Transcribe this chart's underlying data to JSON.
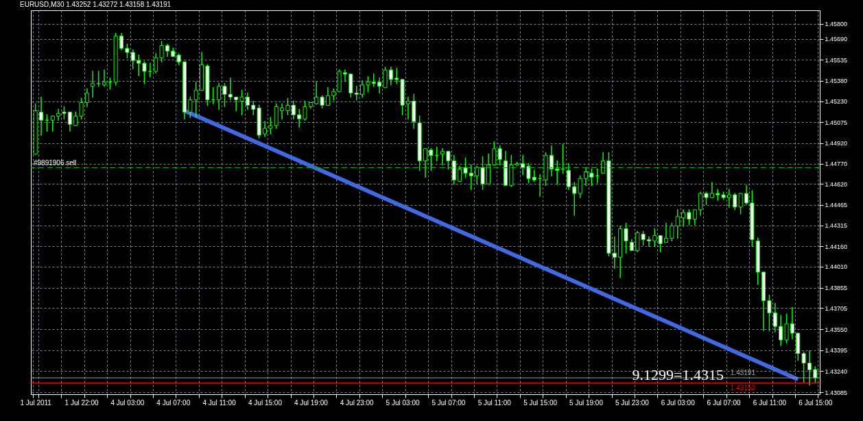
{
  "chart_data": {
    "type": "candlestick",
    "title": "EURUSD,M30  1.43252 1.43272 1.43158 1.43191",
    "categories": [
      "1 Jul 2011",
      null,
      null,
      null,
      null,
      null,
      null,
      null,
      "1 Jul 22:00",
      null,
      null,
      null,
      null,
      null,
      null,
      null,
      "4 Jul 03:00",
      null,
      null,
      null,
      null,
      null,
      null,
      null,
      "4 Jul 07:00",
      null,
      null,
      null,
      null,
      null,
      null,
      null,
      "4 Jul 11:00",
      null,
      null,
      null,
      null,
      null,
      null,
      null,
      "4 Jul 15:00",
      null,
      null,
      null,
      null,
      null,
      null,
      null,
      "4 Jul 19:00",
      null,
      null,
      null,
      null,
      null,
      null,
      null,
      "4 Jul 23:00",
      null,
      null,
      null,
      null,
      null,
      null,
      null,
      "5 Jul 03:00",
      null,
      null,
      null,
      null,
      null,
      null,
      null,
      "5 Jul 07:00",
      null,
      null,
      null,
      null,
      null,
      null,
      null,
      "5 Jul 11:00",
      null,
      null,
      null,
      null,
      null,
      null,
      null,
      "5 Jul 15:00",
      null,
      null,
      null,
      null,
      null,
      null,
      null,
      "5 Jul 19:00",
      null,
      null,
      null,
      null,
      null,
      null,
      null,
      "5 Jul 23:00",
      null,
      null,
      null,
      null,
      null,
      null,
      null,
      "6 Jul 03:00",
      null,
      null,
      null,
      null,
      null,
      null,
      null,
      "6 Jul 07:00",
      null,
      null,
      null,
      null,
      null,
      null,
      null,
      "6 Jul 11:00",
      null,
      null,
      null,
      null,
      null,
      null,
      null,
      "6 Jul 15:00"
    ],
    "ohlc": [
      [
        1.4484,
        1.4521,
        1.4484,
        1.4516
      ],
      [
        1.4515,
        1.4526,
        1.4498,
        1.4509
      ],
      [
        1.4509,
        1.4513,
        1.4501,
        1.4509
      ],
      [
        1.4509,
        1.4512,
        1.4501,
        1.4512
      ],
      [
        1.4512,
        1.4517,
        1.4509,
        1.4514
      ],
      [
        1.4515,
        1.4519,
        1.451,
        1.4514
      ],
      [
        1.4515,
        1.4515,
        1.4501,
        1.4506
      ],
      [
        1.4505,
        1.4515,
        1.4505,
        1.4512
      ],
      [
        1.4512,
        1.4525,
        1.451,
        1.4522
      ],
      [
        1.4522,
        1.4532,
        1.4519,
        1.4529
      ],
      [
        1.4534,
        1.4545,
        1.4526,
        1.4536
      ],
      [
        1.4536,
        1.4545,
        1.4534,
        1.4536
      ],
      [
        1.4535,
        1.4546,
        1.4534,
        1.4537
      ],
      [
        1.4537,
        1.454,
        1.4532,
        1.4537
      ],
      [
        1.4537,
        1.4573,
        1.4535,
        1.4571
      ],
      [
        1.4571,
        1.4573,
        1.4561,
        1.4562
      ],
      [
        1.4562,
        1.4565,
        1.4555,
        1.4559
      ],
      [
        1.4559,
        1.4561,
        1.4547,
        1.4553
      ],
      [
        1.4553,
        1.4557,
        1.4542,
        1.4551
      ],
      [
        1.4551,
        1.4552,
        1.4536,
        1.4545
      ],
      [
        1.4545,
        1.4551,
        1.4541,
        1.4545
      ],
      [
        1.4545,
        1.4558,
        1.4544,
        1.4555
      ],
      [
        1.4555,
        1.4567,
        1.4552,
        1.4564
      ],
      [
        1.4564,
        1.4565,
        1.4556,
        1.456
      ],
      [
        1.456,
        1.4562,
        1.4556,
        1.4556
      ],
      [
        1.4557,
        1.4558,
        1.455,
        1.4552
      ],
      [
        1.4552,
        1.4552,
        1.451,
        1.4515
      ],
      [
        1.4515,
        1.4526,
        1.4511,
        1.4524
      ],
      [
        1.4524,
        1.4537,
        1.4511,
        1.4531
      ],
      [
        1.4531,
        1.4559,
        1.4531,
        1.455
      ],
      [
        1.4549,
        1.455,
        1.452,
        1.4524
      ],
      [
        1.4524,
        1.4533,
        1.4521,
        1.4524
      ],
      [
        1.4524,
        1.4536,
        1.4517,
        1.4534
      ],
      [
        1.4534,
        1.4536,
        1.4519,
        1.4528
      ],
      [
        1.4528,
        1.454,
        1.4524,
        1.4526
      ],
      [
        1.4526,
        1.4526,
        1.4516,
        1.4524
      ],
      [
        1.4523,
        1.4531,
        1.4513,
        1.4526
      ],
      [
        1.4526,
        1.4529,
        1.4517,
        1.452
      ],
      [
        1.452,
        1.4523,
        1.4513,
        1.4517
      ],
      [
        1.4518,
        1.452,
        1.4496,
        1.4498
      ],
      [
        1.4499,
        1.4508,
        1.4497,
        1.4503
      ],
      [
        1.4503,
        1.4511,
        1.4499,
        1.4505
      ],
      [
        1.4505,
        1.4521,
        1.4503,
        1.4519
      ],
      [
        1.4516,
        1.4521,
        1.451,
        1.4518
      ],
      [
        1.4516,
        1.4525,
        1.4513,
        1.452
      ],
      [
        1.452,
        1.4523,
        1.451,
        1.4513
      ],
      [
        1.4513,
        1.4517,
        1.4504,
        1.451
      ],
      [
        1.451,
        1.4523,
        1.4509,
        1.4519
      ],
      [
        1.4519,
        1.4522,
        1.4518,
        1.4522
      ],
      [
        1.4521,
        1.4537,
        1.4521,
        1.4526
      ],
      [
        1.4526,
        1.4527,
        1.4518,
        1.452
      ],
      [
        1.452,
        1.4533,
        1.452,
        1.4527
      ],
      [
        1.4527,
        1.4532,
        1.4524,
        1.453
      ],
      [
        1.453,
        1.4546,
        1.453,
        1.4545
      ],
      [
        1.4544,
        1.4546,
        1.4538,
        1.4543
      ],
      [
        1.4543,
        1.4543,
        1.4526,
        1.4529
      ],
      [
        1.4529,
        1.4534,
        1.4524,
        1.4528
      ],
      [
        1.4528,
        1.4538,
        1.4526,
        1.4535
      ],
      [
        1.4535,
        1.4541,
        1.453,
        1.4537
      ],
      [
        1.4537,
        1.4543,
        1.4534,
        1.4536
      ],
      [
        1.4537,
        1.454,
        1.4529,
        1.4534
      ],
      [
        1.4533,
        1.4548,
        1.4533,
        1.4546
      ],
      [
        1.4546,
        1.4548,
        1.4535,
        1.4539
      ],
      [
        1.454,
        1.4547,
        1.4536,
        1.4539
      ],
      [
        1.4539,
        1.4539,
        1.4513,
        1.452
      ],
      [
        1.4521,
        1.4526,
        1.451,
        1.4523
      ],
      [
        1.4523,
        1.4528,
        1.4503,
        1.4508
      ],
      [
        1.4507,
        1.4512,
        1.4472,
        1.4479
      ],
      [
        1.4479,
        1.4488,
        1.4467,
        1.4488
      ],
      [
        1.4487,
        1.4488,
        1.4472,
        1.4483
      ],
      [
        1.4483,
        1.4489,
        1.4479,
        1.4483
      ],
      [
        1.4484,
        1.4488,
        1.4476,
        1.4486
      ],
      [
        1.4486,
        1.4486,
        1.4473,
        1.4479
      ],
      [
        1.4479,
        1.4483,
        1.4462,
        1.4465
      ],
      [
        1.4464,
        1.4475,
        1.4464,
        1.4473
      ],
      [
        1.4474,
        1.4481,
        1.4467,
        1.447
      ],
      [
        1.447,
        1.4476,
        1.4458,
        1.4468
      ],
      [
        1.4468,
        1.4475,
        1.4462,
        1.4474
      ],
      [
        1.4474,
        1.4482,
        1.4458,
        1.4462
      ],
      [
        1.4462,
        1.4484,
        1.4462,
        1.4476
      ],
      [
        1.4476,
        1.4493,
        1.4476,
        1.4488
      ],
      [
        1.4488,
        1.449,
        1.4476,
        1.448
      ],
      [
        1.4479,
        1.4486,
        1.4461,
        1.4461
      ],
      [
        1.4461,
        1.4483,
        1.446,
        1.4476
      ],
      [
        1.4476,
        1.4478,
        1.4476,
        1.4477
      ],
      [
        1.4477,
        1.4483,
        1.4469,
        1.4474
      ],
      [
        1.4475,
        1.4477,
        1.4463,
        1.4466
      ],
      [
        1.4467,
        1.4472,
        1.4464,
        1.4465
      ],
      [
        1.4466,
        1.4469,
        1.4453,
        1.4466
      ],
      [
        1.4465,
        1.4485,
        1.4461,
        1.4483
      ],
      [
        1.4483,
        1.449,
        1.4468,
        1.4473
      ],
      [
        1.4473,
        1.4479,
        1.4462,
        1.4472
      ],
      [
        1.4473,
        1.4491,
        1.447,
        1.4473
      ],
      [
        1.4472,
        1.4477,
        1.4458,
        1.446
      ],
      [
        1.446,
        1.4463,
        1.4439,
        1.4455
      ],
      [
        1.4455,
        1.4468,
        1.4452,
        1.4466
      ],
      [
        1.4466,
        1.4474,
        1.4461,
        1.4471
      ],
      [
        1.447,
        1.4473,
        1.4461,
        1.4467
      ],
      [
        1.4468,
        1.4473,
        1.4463,
        1.4468
      ],
      [
        1.447,
        1.4485,
        1.447,
        1.4479
      ],
      [
        1.4479,
        1.4485,
        1.4409,
        1.4411
      ],
      [
        1.4411,
        1.4423,
        1.44,
        1.4408
      ],
      [
        1.4408,
        1.4431,
        1.4393,
        1.4429
      ],
      [
        1.4429,
        1.4433,
        1.4411,
        1.442
      ],
      [
        1.4419,
        1.4421,
        1.4413,
        1.4413
      ],
      [
        1.4413,
        1.4427,
        1.4412,
        1.4426
      ],
      [
        1.4425,
        1.4427,
        1.4417,
        1.4421
      ],
      [
        1.4421,
        1.4423,
        1.4416,
        1.442
      ],
      [
        1.442,
        1.4429,
        1.4416,
        1.4424
      ],
      [
        1.4424,
        1.4424,
        1.4412,
        1.4418
      ],
      [
        1.4419,
        1.4433,
        1.4419,
        1.4422
      ],
      [
        1.4422,
        1.4433,
        1.442,
        1.4431
      ],
      [
        1.4431,
        1.4443,
        1.4422,
        1.4438
      ],
      [
        1.4437,
        1.4443,
        1.4431,
        1.4441
      ],
      [
        1.4441,
        1.4443,
        1.4432,
        1.4436
      ],
      [
        1.4436,
        1.4443,
        1.4432,
        1.4443
      ],
      [
        1.4443,
        1.4456,
        1.4439,
        1.4455
      ],
      [
        1.4455,
        1.4456,
        1.4447,
        1.4452
      ],
      [
        1.4452,
        1.4463,
        1.4452,
        1.4455
      ],
      [
        1.4455,
        1.4458,
        1.445,
        1.4454
      ],
      [
        1.4454,
        1.4456,
        1.4451,
        1.4452
      ],
      [
        1.4452,
        1.4458,
        1.4445,
        1.4454
      ],
      [
        1.4454,
        1.4455,
        1.4443,
        1.4445
      ],
      [
        1.4445,
        1.4455,
        1.444,
        1.4455
      ],
      [
        1.4455,
        1.4461,
        1.4447,
        1.4448
      ],
      [
        1.4448,
        1.4457,
        1.4416,
        1.4421
      ],
      [
        1.442,
        1.4422,
        1.4388,
        1.4397
      ],
      [
        1.4397,
        1.4397,
        1.4354,
        1.4376
      ],
      [
        1.4376,
        1.438,
        1.4354,
        1.4367
      ],
      [
        1.4367,
        1.4374,
        1.4353,
        1.4357
      ],
      [
        1.4357,
        1.4365,
        1.4343,
        1.4347
      ],
      [
        1.4347,
        1.4366,
        1.4345,
        1.4359
      ],
      [
        1.4359,
        1.4371,
        1.4348,
        1.4352
      ],
      [
        1.4352,
        1.4352,
        1.4332,
        1.4337
      ],
      [
        1.4337,
        1.4338,
        1.4316,
        1.433
      ],
      [
        1.433,
        1.4339,
        1.4314,
        1.4325
      ],
      [
        1.43252,
        1.43272,
        1.43158,
        1.43191
      ]
    ],
    "series": [
      {
        "type": "line",
        "color": "#4169e1",
        "values": [
          null,
          null,
          null,
          null,
          null,
          null,
          null,
          null,
          null,
          null,
          null,
          null,
          null,
          null,
          null,
          null,
          null,
          null,
          null,
          null,
          null,
          null,
          null,
          null,
          null,
          null,
          1.4516,
          null,
          null,
          null,
          null,
          null,
          null,
          null,
          null,
          null,
          null,
          null,
          null,
          null,
          null,
          null,
          null,
          null,
          null,
          null,
          null,
          null,
          null,
          null,
          null,
          null,
          null,
          null,
          null,
          null,
          null,
          null,
          null,
          null,
          null,
          null,
          null,
          null,
          null,
          null,
          null,
          null,
          null,
          null,
          null,
          null,
          null,
          null,
          null,
          null,
          null,
          null,
          null,
          null,
          null,
          null,
          null,
          null,
          null,
          null,
          null,
          null,
          null,
          null,
          null,
          null,
          null,
          null,
          null,
          null,
          null,
          null,
          null,
          null,
          null,
          null,
          null,
          null,
          null,
          null,
          null,
          null,
          null,
          null,
          null,
          null,
          null,
          null,
          null,
          null,
          null,
          null,
          null,
          null,
          null,
          null,
          null,
          null,
          null,
          null,
          null,
          null,
          null,
          null,
          null,
          null,
          null,
          1.4318,
          null,
          null,
          null
        ]
      }
    ],
    "ylim": [
      1.4307,
      1.459
    ],
    "yticks": [
      {
        "value": 1.458,
        "label": "1.45800"
      },
      {
        "value": 1.4569,
        "label": "1.45690"
      },
      {
        "value": 1.45535,
        "label": "1.45535"
      },
      {
        "value": 1.4538,
        "label": "1.45380"
      },
      {
        "value": 1.4523,
        "label": "1.45230"
      },
      {
        "value": 1.45075,
        "label": "1.45075"
      },
      {
        "value": 1.4492,
        "label": "1.44920"
      },
      {
        "value": 1.4477,
        "label": "1.44770"
      },
      {
        "value": 1.4462,
        "label": "1.44620"
      },
      {
        "value": 1.44465,
        "label": "1.44465"
      },
      {
        "value": 1.44315,
        "label": "1.44315"
      },
      {
        "value": 1.4416,
        "label": "1.44160"
      },
      {
        "value": 1.4401,
        "label": "1.44010"
      },
      {
        "value": 1.43855,
        "label": "1.43855"
      },
      {
        "value": 1.43705,
        "label": "1.43705"
      },
      {
        "value": 1.4355,
        "label": "1.43550"
      },
      {
        "value": 1.43395,
        "label": "1.43395"
      },
      {
        "value": 1.4324,
        "label": "1.43240"
      },
      {
        "value": 1.43085,
        "label": "1.43085"
      }
    ],
    "ref_lines": [
      {
        "axis": "y",
        "value": 1.4474,
        "label": "#9891906 sell",
        "color": "#00c000",
        "line_style": "dashed"
      },
      {
        "axis": "y",
        "value": 1.43191,
        "label": "1.43191",
        "color": "#a0a0a0"
      },
      {
        "axis": "y",
        "value": 1.43153,
        "label": "1.43153",
        "color": "#ff0000"
      }
    ],
    "annotations": [
      "9.1299=1.4315"
    ],
    "grid": true
  }
}
